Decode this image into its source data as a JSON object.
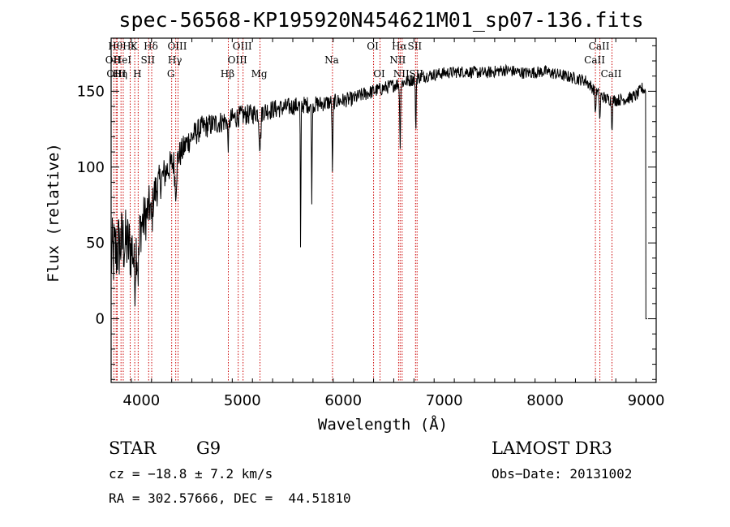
{
  "chart_data": {
    "type": "line",
    "title": "spec-56568-KP195920N454621M01_sp07-136.fits",
    "xlabel": "Wavelength (Å)",
    "ylabel": "Flux (relative)",
    "xlim": [
      3700,
      9100
    ],
    "ylim": [
      -42,
      185
    ],
    "xticks": [
      4000,
      5000,
      6000,
      7000,
      8000,
      9000
    ],
    "yticks": [
      0,
      50,
      100,
      150
    ],
    "series": [
      {
        "name": "spectrum",
        "anchors": {
          "x": [
            3700,
            3750,
            3800,
            3850,
            3900,
            3950,
            4000,
            4050,
            4100,
            4150,
            4200,
            4250,
            4300,
            4350,
            4400,
            4450,
            4500,
            4600,
            4700,
            4800,
            4900,
            5000,
            5100,
            5200,
            5300,
            5400,
            5500,
            5600,
            5700,
            5800,
            5900,
            6000,
            6100,
            6200,
            6300,
            6400,
            6500,
            6600,
            6700,
            6800,
            6900,
            7000,
            7200,
            7400,
            7600,
            7800,
            8000,
            8200,
            8400,
            8500,
            8600,
            8700,
            8800,
            8900,
            8960,
            8990,
            9000
          ],
          "y": [
            40,
            45,
            50,
            50,
            45,
            55,
            62,
            68,
            78,
            86,
            92,
            98,
            102,
            106,
            110,
            116,
            120,
            126,
            128,
            130,
            132,
            134,
            135,
            137,
            138,
            139,
            140,
            141,
            141,
            142,
            143,
            144,
            145,
            148,
            150,
            152,
            154,
            156,
            158,
            160,
            161,
            162,
            163,
            162,
            164,
            162,
            163,
            160,
            157,
            150,
            145,
            144,
            145,
            147,
            152,
            150,
            0
          ]
        },
        "noise_amplitude": {
          "x": [
            3700,
            3900,
            4100,
            4300,
            4600,
            5000,
            6000,
            7000,
            8000,
            9000
          ],
          "y": [
            26,
            22,
            14,
            10,
            8,
            7,
            5,
            4,
            4,
            4
          ]
        },
        "absorption_features": [
          {
            "center": 3934,
            "depth": 25,
            "width": 12
          },
          {
            "center": 3968,
            "depth": 25,
            "width": 12
          },
          {
            "center": 4102,
            "depth": 15,
            "width": 10
          },
          {
            "center": 4340,
            "depth": 20,
            "width": 12
          },
          {
            "center": 4861,
            "depth": 15,
            "width": 10
          },
          {
            "center": 5175,
            "depth": 22,
            "width": 12
          },
          {
            "center": 5577,
            "depth": 105,
            "width": 4
          },
          {
            "center": 5688,
            "depth": 60,
            "width": 5
          },
          {
            "center": 5893,
            "depth": 45,
            "width": 6
          },
          {
            "center": 6563,
            "depth": 40,
            "width": 6
          },
          {
            "center": 6718,
            "depth": 35,
            "width": 5
          },
          {
            "center": 8498,
            "depth": 15,
            "width": 6
          },
          {
            "center": 8542,
            "depth": 18,
            "width": 6
          },
          {
            "center": 8662,
            "depth": 18,
            "width": 6
          }
        ]
      }
    ],
    "reference_lines": [
      {
        "wavelength": 3727,
        "label": "OII",
        "tier": 1
      },
      {
        "wavelength": 3750,
        "label": "Hθ",
        "tier": 0
      },
      {
        "wavelength": 3760,
        "label": "OIII",
        "tier": 2
      },
      {
        "wavelength": 3798,
        "label": "Hη",
        "tier": 2
      },
      {
        "wavelength": 3820,
        "label": "HeI",
        "tier": 1
      },
      {
        "wavelength": 3889,
        "label": "Hε",
        "tier": 0
      },
      {
        "wavelength": 3934,
        "label": "K",
        "tier": 0
      },
      {
        "wavelength": 3968,
        "label": "H",
        "tier": 2
      },
      {
        "wavelength": 4072,
        "label": "SII",
        "tier": 1
      },
      {
        "wavelength": 4102,
        "label": "Hδ",
        "tier": 0
      },
      {
        "wavelength": 4300,
        "label": "G",
        "tier": 2
      },
      {
        "wavelength": 4340,
        "label": "Hγ",
        "tier": 1
      },
      {
        "wavelength": 4363,
        "label": "OIII",
        "tier": 0
      },
      {
        "wavelength": 4861,
        "label": "Hβ",
        "tier": 2
      },
      {
        "wavelength": 4959,
        "label": "OIII",
        "tier": 1
      },
      {
        "wavelength": 5007,
        "label": "OIII",
        "tier": 0
      },
      {
        "wavelength": 5175,
        "label": "Mg",
        "tier": 2
      },
      {
        "wavelength": 5893,
        "label": "Na",
        "tier": 1
      },
      {
        "wavelength": 6300,
        "label": "OI",
        "tier": 0
      },
      {
        "wavelength": 6364,
        "label": "OI",
        "tier": 2
      },
      {
        "wavelength": 6548,
        "label": "NII",
        "tier": 1
      },
      {
        "wavelength": 6563,
        "label": "Hα",
        "tier": 0
      },
      {
        "wavelength": 6583,
        "label": "NII",
        "tier": 2
      },
      {
        "wavelength": 6716,
        "label": "SII",
        "tier": 0
      },
      {
        "wavelength": 6731,
        "label": "SII",
        "tier": 2
      },
      {
        "wavelength": 8498,
        "label": "CaII",
        "tier": 1
      },
      {
        "wavelength": 8542,
        "label": "CaII",
        "tier": 0
      },
      {
        "wavelength": 8662,
        "label": "CaII",
        "tier": 2
      }
    ],
    "colors": {
      "spectrum": "#000000",
      "reference_line": "#cc0000",
      "axes": "#000000"
    }
  },
  "info": {
    "object_class": "STAR",
    "subclass": "G9",
    "survey": "LAMOST DR3",
    "redshift_text": "cz = −18.8 ± 7.2 km/s",
    "obs_date_text": "Obs−Date: 20131002",
    "coords_text": "RA = 302.57666, DEC =  44.51810"
  }
}
